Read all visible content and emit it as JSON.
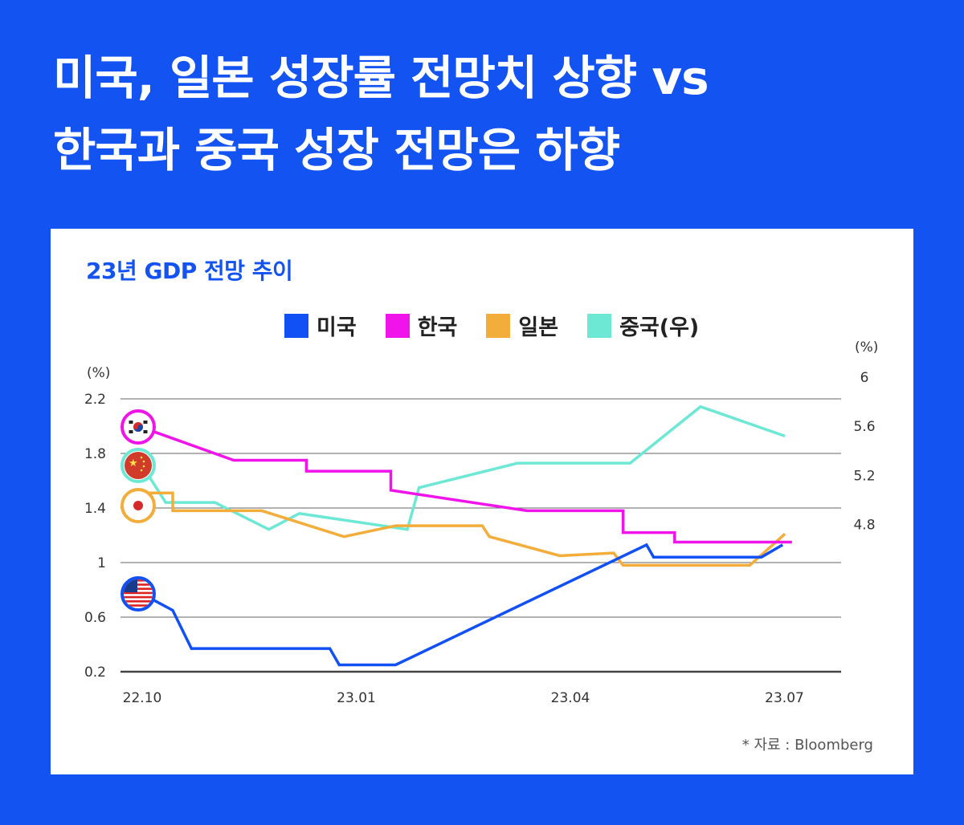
{
  "header": {
    "title_line1": "미국, 일본 성장률 전망치 상향 vs",
    "title_line2": "한국과 중국 성장 전망은 하향"
  },
  "source": "* 자료 : Bloomberg",
  "colors": {
    "background": "#1253f1",
    "us": "#1150f5",
    "korea": "#f014ea",
    "japan": "#f3ad3b",
    "china": "#6de8d4"
  },
  "chart_data": {
    "type": "line",
    "title": "23년 GDP 전망 추이",
    "ylabel_left": "(%)",
    "ylabel_right": "(%)",
    "ylim_left": [
      0.2,
      2.2
    ],
    "yticks_left": [
      "2.2",
      "1.8",
      "1.4",
      "1",
      "0.6",
      "0.2"
    ],
    "yticks_right": [
      "6",
      "5.6",
      "5.2",
      "4.8"
    ],
    "xticks": [
      "22.10",
      "23.01",
      "23.04",
      "23.07"
    ],
    "grid": true,
    "legend_placement": "top-center",
    "series": [
      {
        "name": "미국",
        "key": "us",
        "axis": "left",
        "flag": "us-flag",
        "x": [
          "2022-10-01",
          "2022-10-14",
          "2022-10-22",
          "2022-12-20",
          "2022-12-24",
          "2023-01-17",
          "2023-05-04",
          "2023-05-07",
          "2023-06-22",
          "2023-07-01"
        ],
        "y": [
          0.77,
          0.65,
          0.37,
          0.37,
          0.25,
          0.25,
          1.13,
          1.04,
          1.04,
          1.13
        ]
      },
      {
        "name": "한국",
        "key": "korea",
        "axis": "left",
        "flag": "korea-flag",
        "x": [
          "2022-10-01",
          "2022-11-09",
          "2022-12-10",
          "2022-12-10",
          "2023-01-15",
          "2023-01-15",
          "2023-03-14",
          "2023-04-24",
          "2023-04-24",
          "2023-05-16",
          "2023-05-16",
          "2023-07-05"
        ],
        "y": [
          1.99,
          1.75,
          1.75,
          1.67,
          1.67,
          1.53,
          1.38,
          1.38,
          1.22,
          1.22,
          1.15,
          1.15
        ]
      },
      {
        "name": "일본",
        "key": "japan",
        "axis": "left",
        "flag": "japan-flag",
        "x": [
          "2022-10-01",
          "2022-10-14",
          "2022-10-14",
          "2022-11-21",
          "2022-12-26",
          "2023-01-17",
          "2023-02-23",
          "2023-02-26",
          "2023-03-28",
          "2023-04-20",
          "2023-04-24",
          "2023-06-17",
          "2023-07-02"
        ],
        "y": [
          1.51,
          1.51,
          1.38,
          1.38,
          1.19,
          1.27,
          1.27,
          1.19,
          1.05,
          1.07,
          0.98,
          0.98,
          1.21
        ]
      },
      {
        "name": "중국(우)",
        "key": "china",
        "axis": "right",
        "flag": "china-flag",
        "x": [
          "2022-10-01",
          "2022-10-11",
          "2022-11-01",
          "2022-11-24",
          "2022-12-07",
          "2023-01-22",
          "2023-01-27",
          "2023-03-10",
          "2023-04-27",
          "2023-05-27",
          "2023-07-02"
        ],
        "y": [
          5.28,
          4.98,
          4.98,
          4.76,
          4.89,
          4.76,
          5.1,
          5.3,
          5.3,
          5.76,
          5.52
        ]
      }
    ]
  }
}
